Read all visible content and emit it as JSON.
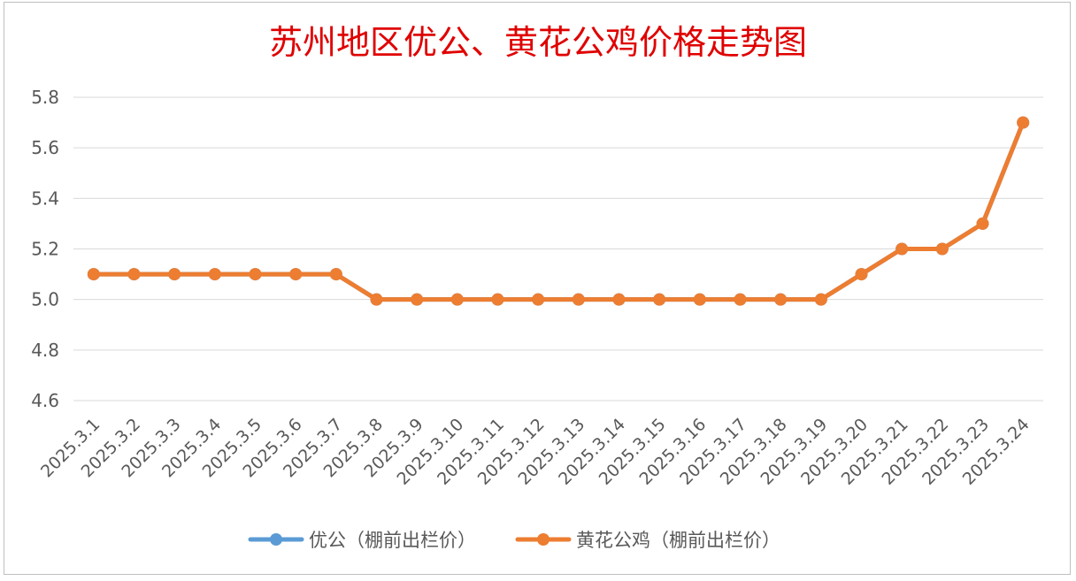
{
  "chart_data": {
    "type": "line",
    "title": "苏州地区优公、黄花公鸡价格走势图",
    "categories": [
      "2025.3.1",
      "2025.3.2",
      "2025.3.3",
      "2025.3.4",
      "2025.3.5",
      "2025.3.6",
      "2025.3.7",
      "2025.3.8",
      "2025.3.9",
      "2025.3.10",
      "2025.3.11",
      "2025.3.12",
      "2025.3.13",
      "2025.3.14",
      "2025.3.15",
      "2025.3.16",
      "2025.3.17",
      "2025.3.18",
      "2025.3.19",
      "2025.3.20",
      "2025.3.21",
      "2025.3.22",
      "2025.3.23",
      "2025.3.24"
    ],
    "series": [
      {
        "name": "优公（棚前出栏价）",
        "color": "#5b9bd5",
        "values": [
          5.1,
          5.1,
          5.1,
          5.1,
          5.1,
          5.1,
          5.1,
          5.0,
          5.0,
          5.0,
          5.0,
          5.0,
          5.0,
          5.0,
          5.0,
          5.0,
          5.0,
          5.0,
          5.0,
          5.1,
          5.2,
          5.2,
          5.3,
          5.7
        ]
      },
      {
        "name": "黄花公鸡（棚前出栏价）",
        "color": "#ed7d31",
        "values": [
          5.1,
          5.1,
          5.1,
          5.1,
          5.1,
          5.1,
          5.1,
          5.0,
          5.0,
          5.0,
          5.0,
          5.0,
          5.0,
          5.0,
          5.0,
          5.0,
          5.0,
          5.0,
          5.0,
          5.1,
          5.2,
          5.2,
          5.3,
          5.7
        ]
      }
    ],
    "yticks": [
      "4.6",
      "4.8",
      "5.0",
      "5.2",
      "5.4",
      "5.6",
      "5.8"
    ],
    "ylim": [
      4.6,
      5.8
    ],
    "grid": true,
    "legend": "bottom",
    "xlabel": "",
    "ylabel": ""
  }
}
